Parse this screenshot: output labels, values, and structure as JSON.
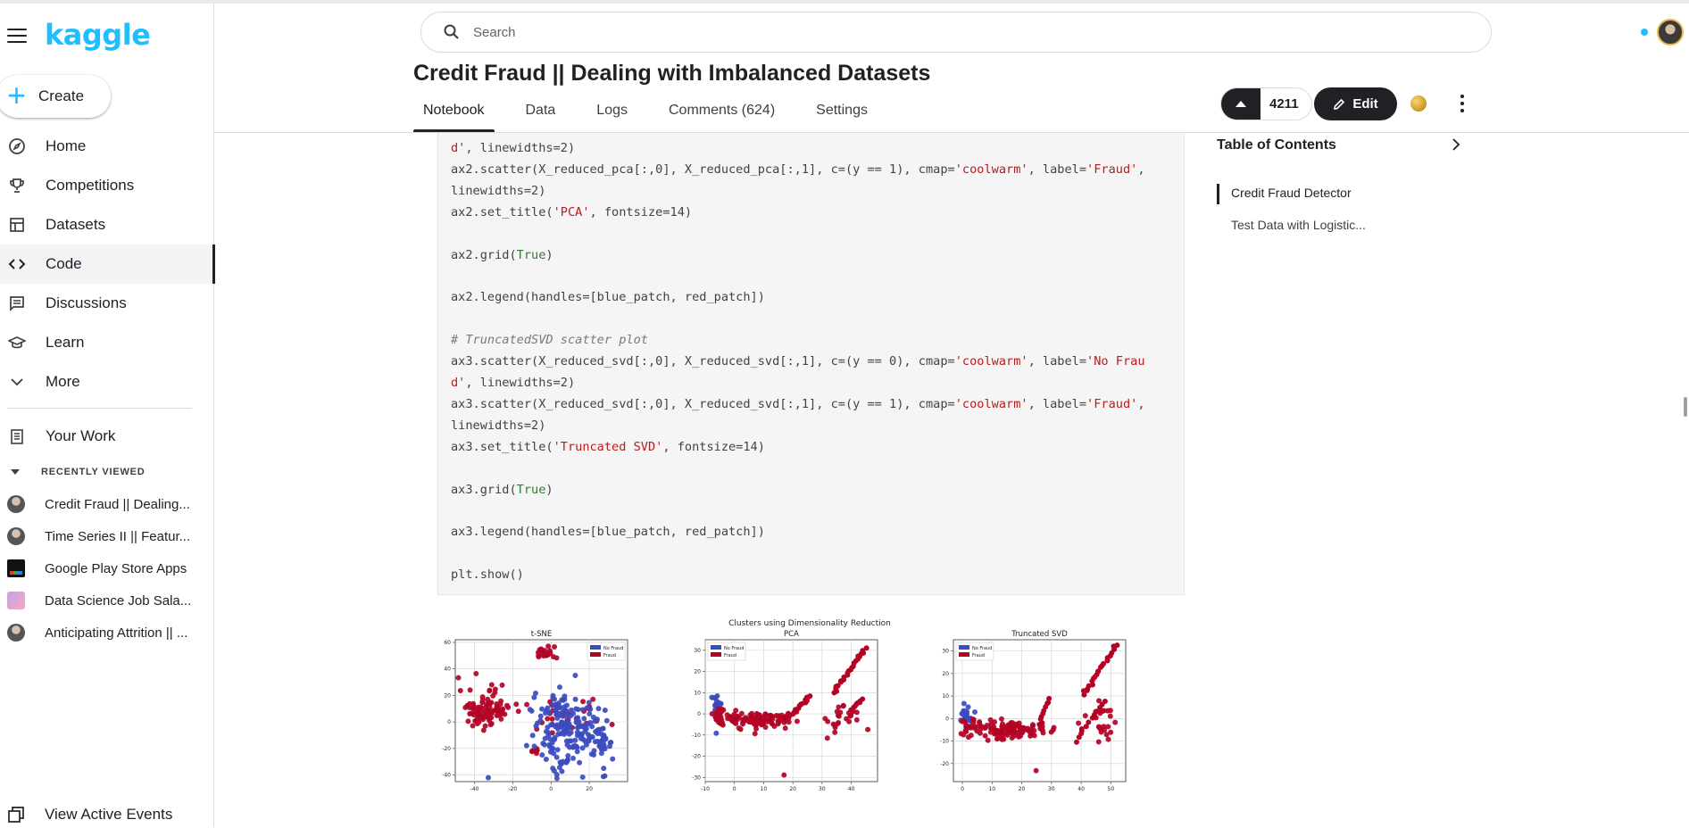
{
  "brand": {
    "logo_text": "kaggle",
    "accent": "#20beff"
  },
  "sidebar": {
    "create_label": "Create",
    "nav": [
      {
        "label": "Home",
        "icon": "compass-icon"
      },
      {
        "label": "Competitions",
        "icon": "trophy-icon"
      },
      {
        "label": "Datasets",
        "icon": "table-icon"
      },
      {
        "label": "Code",
        "icon": "code-icon",
        "active": true
      },
      {
        "label": "Discussions",
        "icon": "discussion-icon"
      },
      {
        "label": "Learn",
        "icon": "graduation-cap-icon"
      },
      {
        "label": "More",
        "icon": "chevron-down-icon"
      }
    ],
    "your_work": "Your Work",
    "recently_viewed_header": "RECENTLY VIEWED",
    "recent": [
      "Credit Fraud || Dealing...",
      "Time Series II || Featur...",
      "Google Play Store Apps",
      "Data Science Job Sala...",
      "Anticipating Attrition || ..."
    ],
    "view_active_events": "View Active Events"
  },
  "header": {
    "search_placeholder": "Search",
    "title": "Credit Fraud || Dealing with Imbalanced Datasets",
    "tabs": [
      "Notebook",
      "Data",
      "Logs",
      "Comments (624)",
      "Settings"
    ],
    "active_tab": "Notebook",
    "upvotes": "4211",
    "edit_label": "Edit"
  },
  "toc": {
    "title": "Table of Contents",
    "items": [
      "Credit Fraud Detector",
      "Test Data with Logistic..."
    ]
  },
  "code_lines": [
    [
      [
        "d', linewidths=2)",
        "s-tail"
      ]
    ],
    [
      [
        "ax2.scatter(X_reduced_pca[:,0], X_reduced_pca[:,1], c=(y == 1), cmap=",
        ""
      ],
      [
        "'coolwarm'",
        "s"
      ],
      [
        ", label=",
        ""
      ],
      [
        "'Fraud'",
        "s"
      ],
      [
        ",",
        ""
      ]
    ],
    [
      [
        "linewidths=2)",
        ""
      ]
    ],
    [
      [
        "ax2.set_title(",
        ""
      ],
      [
        "'PCA'",
        "s"
      ],
      [
        ", fontsize=14)",
        ""
      ]
    ],
    [
      [
        "",
        ""
      ]
    ],
    [
      [
        "ax2.grid(",
        ""
      ],
      [
        "True",
        "k"
      ],
      [
        ")",
        ""
      ]
    ],
    [
      [
        "",
        ""
      ]
    ],
    [
      [
        "ax2.legend(handles=[blue_patch, red_patch])",
        ""
      ]
    ],
    [
      [
        "",
        ""
      ]
    ],
    [
      [
        "# TruncatedSVD scatter plot",
        "c"
      ]
    ],
    [
      [
        "ax3.scatter(X_reduced_svd[:,0], X_reduced_svd[:,1], c=(y == 0), cmap=",
        ""
      ],
      [
        "'coolwarm'",
        "s"
      ],
      [
        ", label=",
        ""
      ],
      [
        "'No Frau",
        "s"
      ]
    ],
    [
      [
        "d'",
        "s"
      ],
      [
        ", linewidths=2)",
        ""
      ]
    ],
    [
      [
        "ax3.scatter(X_reduced_svd[:,0], X_reduced_svd[:,1], c=(y == 1), cmap=",
        ""
      ],
      [
        "'coolwarm'",
        "s"
      ],
      [
        ", label=",
        ""
      ],
      [
        "'Fraud'",
        "s"
      ],
      [
        ",",
        ""
      ]
    ],
    [
      [
        "linewidths=2)",
        ""
      ]
    ],
    [
      [
        "ax3.set_title(",
        ""
      ],
      [
        "'Truncated SVD'",
        "s"
      ],
      [
        ", fontsize=14)",
        ""
      ]
    ],
    [
      [
        "",
        ""
      ]
    ],
    [
      [
        "ax3.grid(",
        ""
      ],
      [
        "True",
        "k"
      ],
      [
        ")",
        ""
      ]
    ],
    [
      [
        "",
        ""
      ]
    ],
    [
      [
        "ax3.legend(handles=[blue_patch, red_patch])",
        ""
      ]
    ],
    [
      [
        "",
        ""
      ]
    ],
    [
      [
        "plt.show()",
        ""
      ]
    ]
  ],
  "chart_data": [
    {
      "type": "scatter",
      "suptitle": "Clusters using Dimensionality Reduction",
      "title": "t-SNE",
      "legend": [
        "No Fraud",
        "Fraud"
      ],
      "legend_placement": "top-right",
      "colors": {
        "no_fraud": "#3b4cc0",
        "fraud": "#b40426"
      },
      "xlim": [
        -50,
        40
      ],
      "ylim": [
        -45,
        62
      ],
      "xticks": [
        "-40",
        "-20",
        "0",
        "20"
      ],
      "yticks": [
        "-40",
        "-20",
        "0",
        "20",
        "40",
        "60"
      ],
      "grid": true,
      "series": [
        {
          "name": "Fraud",
          "clusters": [
            {
              "cx": -36,
              "cy": 10,
              "sx": 6,
              "sy": 8,
              "n": 70
            },
            {
              "cx": -28,
              "cy": 8,
              "sx": 4,
              "sy": 4,
              "n": 25
            },
            {
              "cx": -4,
              "cy": 52,
              "sx": 3,
              "sy": 2.5,
              "n": 22
            },
            {
              "cx": -8,
              "cy": -22,
              "sx": 2,
              "sy": 1,
              "n": 8
            },
            {
              "cx": 10,
              "cy": 5,
              "sx": 12,
              "sy": 8,
              "n": 25
            }
          ]
        },
        {
          "name": "No Fraud",
          "clusters": [
            {
              "cx": 10,
              "cy": -8,
              "sx": 10,
              "sy": 14,
              "n": 170
            },
            {
              "cx": 4,
              "cy": 10,
              "sx": 4,
              "sy": 4,
              "n": 25
            },
            {
              "cx": 27,
              "cy": -17,
              "sx": 3,
              "sy": 6,
              "n": 25
            }
          ]
        }
      ]
    },
    {
      "type": "scatter",
      "title": "PCA",
      "legend": [
        "No Fraud",
        "Fraud"
      ],
      "legend_placement": "top-left",
      "xlim": [
        -10,
        49
      ],
      "ylim": [
        -32,
        35
      ],
      "xticks": [
        "-10",
        "0",
        "10",
        "20",
        "30",
        "40"
      ],
      "yticks": [
        "-30",
        "-20",
        "-10",
        "0",
        "10",
        "20",
        "30"
      ],
      "grid": true,
      "series": [
        {
          "name": "No Fraud",
          "clusters": [
            {
              "cx": -6,
              "cy": 3,
              "sx": 1,
              "sy": 3,
              "n": 28
            }
          ]
        },
        {
          "name": "Fraud",
          "clusters": [
            {
              "cx": -5,
              "cy": -2,
              "sx": 1.5,
              "sy": 4,
              "n": 20
            },
            {
              "cx": 7,
              "cy": -3,
              "sx": 5,
              "sy": 2,
              "n": 90
            },
            {
              "cx": 17,
              "cy": -2,
              "sx": 2,
              "sy": 2,
              "n": 15
            },
            {
              "cx": 37,
              "cy": -1,
              "sx": 4,
              "sy": 4,
              "n": 25
            },
            {
              "cx": 17,
              "cy": -29,
              "sx": 0.2,
              "sy": 0.2,
              "n": 1
            }
          ],
          "lines": [
            {
              "x0": 20,
              "y0": 0,
              "x1": 26,
              "y1": 9,
              "n": 14
            },
            {
              "x0": 34,
              "y0": 10,
              "x1": 45,
              "y1": 31,
              "n": 24
            },
            {
              "x0": 40,
              "y0": 2,
              "x1": 44,
              "y1": 7,
              "n": 8
            }
          ]
        }
      ]
    },
    {
      "type": "scatter",
      "title": "Truncated SVD",
      "legend": [
        "No Fraud",
        "Fraud"
      ],
      "legend_placement": "top-left",
      "xlim": [
        -3,
        55
      ],
      "ylim": [
        -28,
        35
      ],
      "xticks": [
        "0",
        "10",
        "20",
        "30",
        "40",
        "50"
      ],
      "yticks": [
        "-20",
        "-10",
        "0",
        "10",
        "20",
        "30"
      ],
      "grid": true,
      "series": [
        {
          "name": "No Fraud",
          "clusters": [
            {
              "cx": 1.5,
              "cy": 1,
              "sx": 1,
              "sy": 2,
              "n": 28
            }
          ]
        },
        {
          "name": "Fraud",
          "clusters": [
            {
              "cx": 2,
              "cy": -3,
              "sx": 1.5,
              "sy": 2,
              "n": 15
            },
            {
              "cx": 15,
              "cy": -5,
              "sx": 6,
              "sy": 2,
              "n": 110
            },
            {
              "cx": 45,
              "cy": -2,
              "sx": 3,
              "sy": 5,
              "n": 25
            },
            {
              "cx": 25,
              "cy": -23,
              "sx": 0.2,
              "sy": 0.2,
              "n": 1
            }
          ],
          "lines": [
            {
              "x0": 26,
              "y0": -3,
              "x1": 29,
              "y1": 9,
              "n": 10
            },
            {
              "x0": 41,
              "y0": 11,
              "x1": 52,
              "y1": 33,
              "n": 24
            },
            {
              "x0": 38,
              "y0": -10,
              "x1": 48,
              "y1": 8,
              "n": 12
            }
          ]
        }
      ]
    }
  ]
}
